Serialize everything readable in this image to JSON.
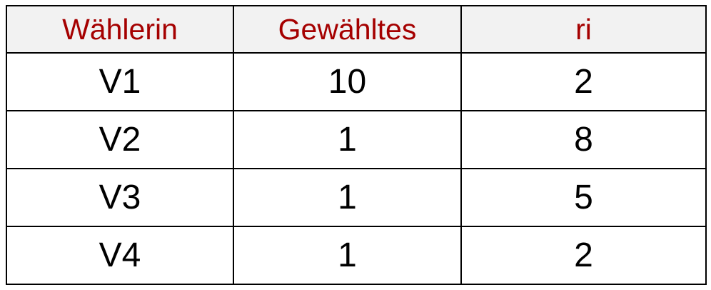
{
  "table": {
    "header_color": "#a50000",
    "header_background": "#f2f2f2",
    "columns": [
      "Wählerin",
      "Gewähltes",
      "ri"
    ],
    "rows": [
      [
        "V1",
        "10",
        "2"
      ],
      [
        "V2",
        "1",
        "8"
      ],
      [
        "V3",
        "1",
        "5"
      ],
      [
        "V4",
        "1",
        "2"
      ]
    ]
  }
}
